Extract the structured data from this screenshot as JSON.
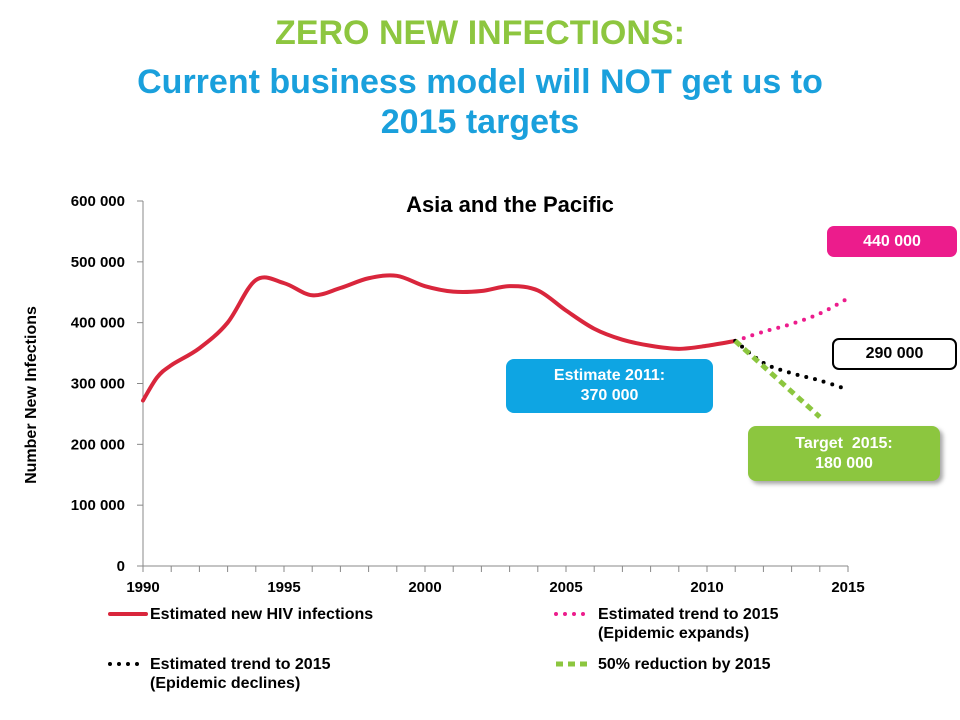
{
  "slide": {
    "title_line1": "ZERO NEW INFECTIONS:",
    "title_line2": "Current business model will NOT get us to 2015 targets"
  },
  "colors": {
    "title_green": "#8dc63f",
    "title_blue": "#1aa0dc",
    "hiv_line": "#d9263c",
    "expands": "#ec1c8c",
    "declines": "#000000",
    "reduction": "#8cc63f",
    "estimate_box": "#0ea5e3"
  },
  "callouts": {
    "estimate": [
      "Estimate 2011:",
      "370 000"
    ],
    "target": [
      "Target  2015:",
      "180 000"
    ],
    "expands_value": "440 000",
    "declines_value": "290 000"
  },
  "chart_data": {
    "type": "line",
    "title": "Asia and the Pacific",
    "xlabel": "",
    "ylabel": "Number New Infections",
    "xlim": [
      1990,
      2015
    ],
    "ylim": [
      0,
      600000
    ],
    "x_ticks": [
      "1990",
      "1995",
      "2000",
      "2005",
      "2010",
      "2015"
    ],
    "y_ticks": [
      "0",
      "100 000",
      "200 000",
      "300 000",
      "400 000",
      "500 000",
      "600 000"
    ],
    "grid": false,
    "legend_position": "bottom",
    "series": [
      {
        "name": "Estimated new HIV infections",
        "style": "solid",
        "x": [
          1990,
          1990.5,
          1991,
          1992,
          1993,
          1994,
          1995,
          1996,
          1997,
          1998,
          1999,
          2000,
          2001,
          2002,
          2003,
          2004,
          2005,
          2006,
          2007,
          2008,
          2009,
          2010,
          2011
        ],
        "y": [
          272000,
          310000,
          330000,
          358000,
          400000,
          470000,
          465000,
          445000,
          457000,
          473000,
          477000,
          460000,
          451000,
          452000,
          460000,
          453000,
          420000,
          390000,
          372000,
          362000,
          357000,
          362000,
          370000
        ]
      },
      {
        "name": "Estimated trend to 2015 (Epidemic expands)",
        "style": "dotted",
        "x": [
          2011,
          2012,
          2013,
          2014,
          2015
        ],
        "y": [
          370000,
          385000,
          398000,
          415000,
          440000
        ]
      },
      {
        "name": "Estimated trend to 2015 (Epidemic declines)",
        "style": "dotted",
        "x": [
          2011,
          2012,
          2013,
          2014,
          2015
        ],
        "y": [
          370000,
          334000,
          317000,
          305000,
          290000
        ]
      },
      {
        "name": "50% reduction by 2015",
        "style": "dashed",
        "x": [
          2011,
          2014
        ],
        "y": [
          370000,
          245000
        ]
      }
    ]
  },
  "legend": [
    {
      "label1": "Estimated new HIV infections",
      "label2": ""
    },
    {
      "label1": "Estimated trend to 2015",
      "label2": "(Epidemic expands)"
    },
    {
      "label1": "Estimated trend to 2015",
      "label2": "(Epidemic declines)"
    },
    {
      "label1": "50% reduction by 2015",
      "label2": ""
    }
  ]
}
